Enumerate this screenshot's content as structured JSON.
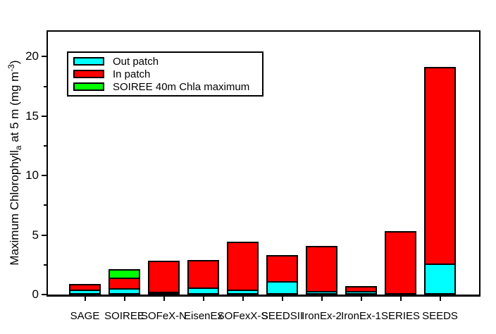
{
  "figure": {
    "background": "#FFFFFF",
    "frame_color": "#000000",
    "title": ""
  },
  "y_axis": {
    "title_parts": {
      "main1": "Maximum Chlorophyll",
      "sub": "a",
      "main2": " at 5 m (mg m",
      "sup": "-3",
      "main3": ")"
    },
    "major_ticks": [
      0,
      5,
      10,
      15,
      20
    ],
    "minor_ticks": [
      2.5,
      7.5,
      12.5,
      17.5
    ]
  },
  "legend": {
    "items": [
      {
        "label": "Out patch",
        "color": "#00FFFF"
      },
      {
        "label": "In patch",
        "color": "#FF0000"
      },
      {
        "label": "SOIREE 40m Chla maximum",
        "color": "#00FF00"
      }
    ]
  },
  "chart_data": {
    "type": "bar",
    "stacked": true,
    "title": "",
    "xlabel": "",
    "ylabel": "Maximum Chlorophyll_a at 5 m (mg m^-3)",
    "ylim": [
      0,
      22.1
    ],
    "grid": false,
    "legend_position": "upper-left-inside",
    "categories": [
      "SAGE",
      "SOIREE",
      "SOFeX-N",
      "EisenEx",
      "SOFexX-S",
      "SEEDSII",
      "IronEx-2",
      "IronEx-1",
      "SERIES",
      "SEEDS"
    ],
    "series": [
      {
        "name": "Out patch",
        "color": "#00FFFF",
        "tops": [
          0.3,
          0.4,
          0.1,
          0.5,
          0.3,
          1.0,
          0.2,
          0.2,
          0,
          2.5
        ]
      },
      {
        "name": "In patch",
        "color": "#FF0000",
        "tops": [
          0.75,
          1.3,
          2.7,
          2.8,
          4.3,
          3.2,
          4.0,
          0.6,
          5.2,
          19.0
        ]
      },
      {
        "name": "SOIREE 40m Chla maximum",
        "color": "#00FF00",
        "tops": [
          null,
          2.0,
          null,
          null,
          null,
          null,
          null,
          null,
          null,
          null
        ]
      }
    ]
  }
}
